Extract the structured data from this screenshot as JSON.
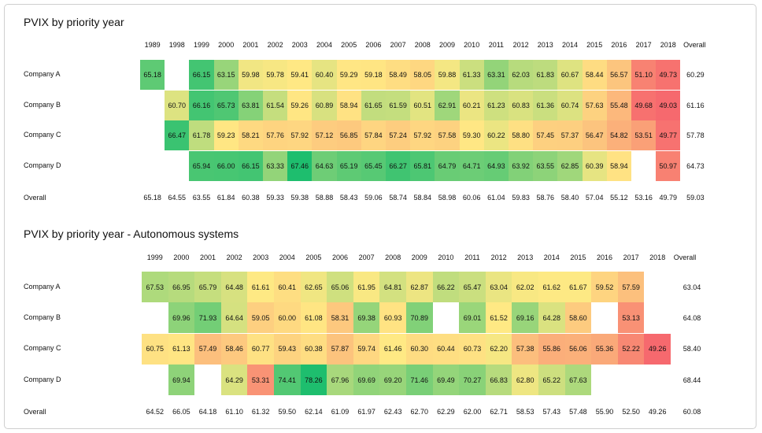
{
  "charts": [
    {
      "title": "PVIX by priority year",
      "type": "heatmap",
      "years": [
        "1989",
        "1998",
        "1999",
        "2000",
        "2001",
        "2002",
        "2003",
        "2004",
        "2005",
        "2006",
        "2007",
        "2008",
        "2009",
        "2010",
        "2011",
        "2012",
        "2013",
        "2014",
        "2015",
        "2016",
        "2017",
        "2018"
      ],
      "overall_label": "Overall",
      "rows": [
        {
          "label": "Company A",
          "values": [
            "65.18",
            null,
            "66.15",
            "63.15",
            "59.98",
            "59.78",
            "59.41",
            "60.40",
            "59.29",
            "59.18",
            "58.49",
            "58.05",
            "59.88",
            "61.33",
            "63.31",
            "62.03",
            "61.83",
            "60.67",
            "58.44",
            "56.57",
            "51.10",
            "49.73"
          ],
          "overall": "60.29"
        },
        {
          "label": "Company B",
          "values": [
            null,
            "60.70",
            "66.16",
            "65.73",
            "63.81",
            "61.54",
            "59.26",
            "60.89",
            "58.94",
            "61.65",
            "61.59",
            "60.51",
            "62.91",
            "60.21",
            "61.23",
            "60.83",
            "61.36",
            "60.74",
            "57.63",
            "55.48",
            "49.68",
            "49.03"
          ],
          "overall": "61.16"
        },
        {
          "label": "Company C",
          "values": [
            null,
            "66.47",
            "61.78",
            "59.23",
            "58.21",
            "57.76",
            "57.92",
            "57.12",
            "56.85",
            "57.84",
            "57.24",
            "57.92",
            "57.58",
            "59.30",
            "60.22",
            "58.80",
            "57.45",
            "57.37",
            "56.47",
            "54.82",
            "53.51",
            "49.77"
          ],
          "overall": "57.78"
        },
        {
          "label": "Company D",
          "values": [
            null,
            null,
            "65.94",
            "66.00",
            "66.15",
            "63.33",
            "67.46",
            "64.63",
            "65.19",
            "65.45",
            "66.27",
            "65.81",
            "64.79",
            "64.71",
            "64.93",
            "63.92",
            "63.55",
            "62.85",
            "60.39",
            "58.94",
            null,
            "50.97"
          ],
          "overall": "64.73"
        }
      ],
      "overall_row": {
        "label": "Overall",
        "values": [
          "65.18",
          "64.55",
          "63.55",
          "61.84",
          "60.38",
          "59.33",
          "59.38",
          "58.88",
          "58.43",
          "59.06",
          "58.74",
          "58.84",
          "58.98",
          "60.06",
          "61.04",
          "59.83",
          "58.76",
          "58.40",
          "57.04",
          "55.12",
          "53.16",
          "49.79"
        ],
        "overall": "59.03"
      }
    },
    {
      "title": "PVIX by priority year - Autonomous systems",
      "type": "heatmap",
      "years": [
        "1999",
        "2000",
        "2001",
        "2002",
        "2003",
        "2004",
        "2005",
        "2006",
        "2007",
        "2008",
        "2009",
        "2010",
        "2011",
        "2012",
        "2013",
        "2014",
        "2015",
        "2016",
        "2017",
        "2018"
      ],
      "overall_label": "Overall",
      "rows": [
        {
          "label": "Company A",
          "values": [
            "67.53",
            "66.95",
            "65.79",
            "64.48",
            "61.61",
            "60.41",
            "62.65",
            "65.06",
            "61.95",
            "64.81",
            "62.87",
            "66.22",
            "65.47",
            "63.04",
            "62.02",
            "61.62",
            "61.67",
            "59.52",
            "57.59",
            null
          ],
          "overall": "63.04"
        },
        {
          "label": "Company B",
          "values": [
            null,
            "69.96",
            "71.93",
            "64.64",
            "59.05",
            "60.00",
            "61.08",
            "58.31",
            "69.38",
            "60.93",
            "70.89",
            null,
            "69.01",
            "61.52",
            "69.16",
            "64.28",
            "58.60",
            null,
            "53.13",
            null
          ],
          "overall": "64.08"
        },
        {
          "label": "Company C",
          "values": [
            "60.75",
            "61.13",
            "57.49",
            "58.46",
            "60.77",
            "59.43",
            "60.38",
            "57.87",
            "59.74",
            "61.46",
            "60.30",
            "60.44",
            "60.73",
            "62.20",
            "57.38",
            "55.86",
            "56.06",
            "55.36",
            "52.22",
            "49.26"
          ],
          "overall": "58.40"
        },
        {
          "label": "Company D",
          "values": [
            null,
            "69.94",
            null,
            "64.29",
            "53.31",
            "74.41",
            "78.26",
            "67.96",
            "69.69",
            "69.20",
            "71.46",
            "69.49",
            "70.27",
            "66.83",
            "62.80",
            "65.22",
            "67.63",
            null,
            null,
            null
          ],
          "overall": "68.44"
        }
      ],
      "overall_row": {
        "label": "Overall",
        "values": [
          "64.52",
          "66.05",
          "64.18",
          "61.10",
          "61.32",
          "59.50",
          "62.14",
          "61.09",
          "61.97",
          "62.43",
          "62.70",
          "62.29",
          "62.00",
          "62.71",
          "58.53",
          "57.43",
          "57.48",
          "55.90",
          "52.50",
          "49.26"
        ],
        "overall": "60.08"
      }
    }
  ]
}
